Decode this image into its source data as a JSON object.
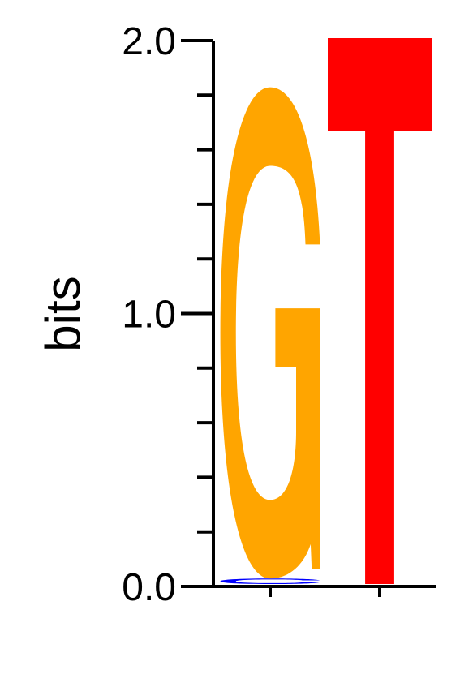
{
  "chart_data": {
    "type": "sequence-logo",
    "ylabel": "bits",
    "ylim": [
      0,
      2
    ],
    "y_ticks": [
      {
        "value": 0,
        "label": "0.0"
      },
      {
        "value": 1,
        "label": "1.0"
      },
      {
        "value": 2,
        "label": "2.0"
      }
    ],
    "minor_tick_step": 0.2,
    "positions": [
      {
        "index": 1,
        "letters": [
          {
            "base": "C",
            "height": 0.02,
            "color": "#0000ff"
          },
          {
            "base": "G",
            "height": 1.8,
            "color": "#ffa500"
          }
        ]
      },
      {
        "index": 2,
        "letters": [
          {
            "base": "T",
            "height": 2.0,
            "color": "#ff0000"
          }
        ]
      }
    ]
  }
}
